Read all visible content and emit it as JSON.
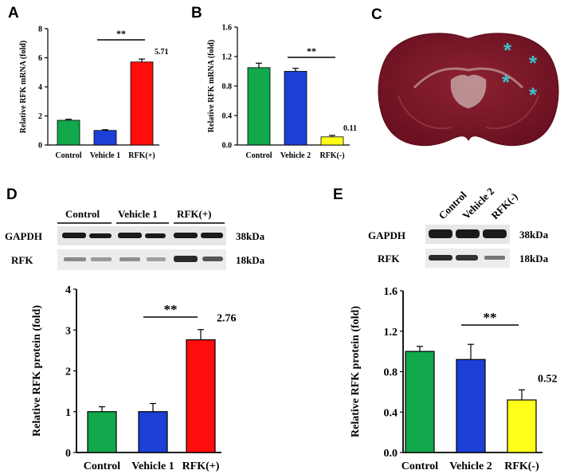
{
  "panels": {
    "A": "A",
    "B": "B",
    "C": "C",
    "D": "D",
    "E": "E"
  },
  "colors": {
    "green": "#12a84b",
    "blue": "#1c3fd6",
    "red": "#ff0d0d",
    "yellow": "#ffff1a",
    "brain_base": "#7a1426",
    "brain_light": "#b08888",
    "asterisk": "#3ec0c8"
  },
  "chart_data": [
    {
      "id": "A",
      "type": "bar",
      "ylabel": "Relative RFK mRNA (fold)",
      "categories": [
        "Control",
        "Vehicle 1",
        "RFK(+)"
      ],
      "values": [
        1.7,
        1.0,
        5.71
      ],
      "errors": [
        0.07,
        0.05,
        0.2
      ],
      "colors": [
        "#12a84b",
        "#1c3fd6",
        "#ff0d0d"
      ],
      "ylim": [
        0,
        8
      ],
      "yticks": [
        "0",
        "2",
        "4",
        "6",
        "8"
      ],
      "value_label": "5.71",
      "value_label_index": 2,
      "significance": "**",
      "sig_from": 1,
      "sig_to": 2
    },
    {
      "id": "B",
      "type": "bar",
      "ylabel": "Relative RFK mRNA (fold)",
      "categories": [
        "Control",
        "Vehicle 2",
        "RFK(-)"
      ],
      "values": [
        1.05,
        1.0,
        0.11
      ],
      "errors": [
        0.06,
        0.04,
        0.02
      ],
      "colors": [
        "#12a84b",
        "#1c3fd6",
        "#ffff1a"
      ],
      "ylim": [
        0,
        1.6
      ],
      "yticks": [
        "0.0",
        "0.4",
        "0.8",
        "1.2",
        "1.6"
      ],
      "value_label": "0.11",
      "value_label_index": 2,
      "significance": "**",
      "sig_from": 1,
      "sig_to": 2
    },
    {
      "id": "D",
      "type": "bar",
      "ylabel": "Relative RFK protein (fold)",
      "categories": [
        "Control",
        "Vehicle 1",
        "RFK(+)"
      ],
      "values": [
        1.0,
        1.0,
        2.76
      ],
      "errors": [
        0.12,
        0.2,
        0.25
      ],
      "colors": [
        "#12a84b",
        "#1c3fd6",
        "#ff0d0d"
      ],
      "ylim": [
        0,
        4
      ],
      "yticks": [
        "0",
        "1",
        "2",
        "3",
        "4"
      ],
      "value_label": "2.76",
      "value_label_index": 2,
      "significance": "**",
      "sig_from": 1,
      "sig_to": 2
    },
    {
      "id": "E",
      "type": "bar",
      "ylabel": "Relative RFK protein (fold)",
      "categories": [
        "Control",
        "Vehicle 2",
        "RFK(-)"
      ],
      "values": [
        1.0,
        0.92,
        0.52
      ],
      "errors": [
        0.05,
        0.15,
        0.1
      ],
      "colors": [
        "#12a84b",
        "#1c3fd6",
        "#ffff1a"
      ],
      "ylim": [
        0,
        1.6
      ],
      "yticks": [
        "0.0",
        "0.4",
        "0.8",
        "1.2",
        "1.6"
      ],
      "value_label": "0.52",
      "value_label_index": 2,
      "significance": "**",
      "sig_from": 1,
      "sig_to": 2
    }
  ],
  "blotD": {
    "groups": [
      "Control",
      "Vehicle 1",
      "RFK(+)"
    ],
    "rows": [
      {
        "name": "GAPDH",
        "size": "38kDa"
      },
      {
        "name": "RFK",
        "size": "18kDa"
      }
    ]
  },
  "blotE": {
    "lanes": [
      "Control",
      "Vehicle 2",
      "RFK(-)"
    ],
    "rows": [
      {
        "name": "GAPDH",
        "size": "38kDa"
      },
      {
        "name": "RFK",
        "size": "18kDa"
      }
    ]
  },
  "brain": {
    "asterisks": [
      "*",
      "*",
      "*",
      "*"
    ]
  }
}
